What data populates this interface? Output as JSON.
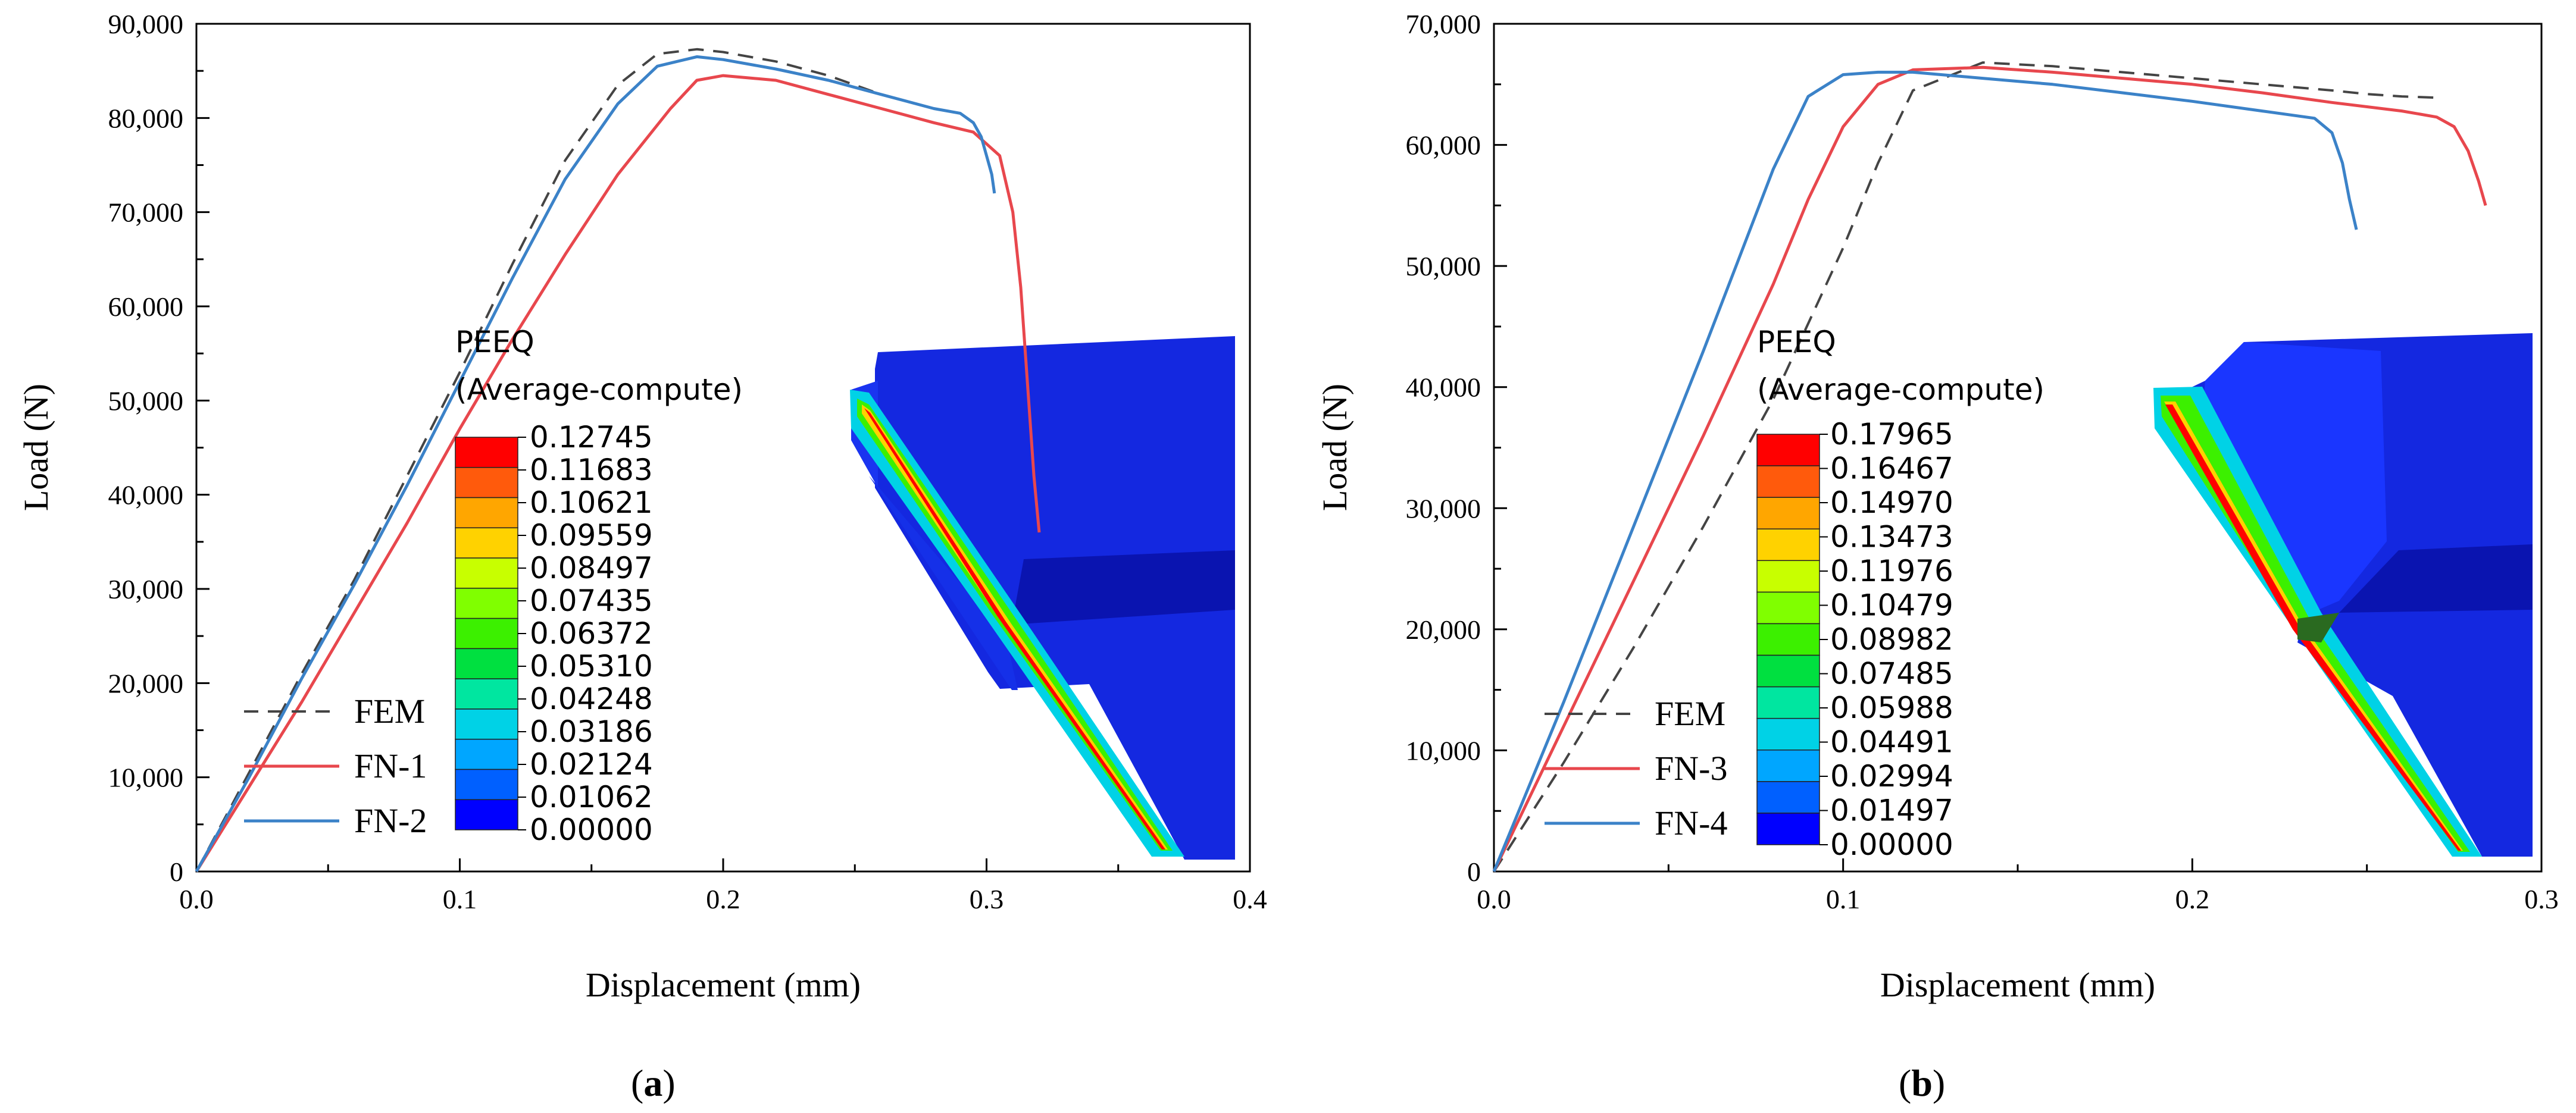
{
  "colors": {
    "fem": "#444444",
    "fn_red": "#e8474d",
    "fn_blue": "#3b82c8",
    "axis": "#000000",
    "mesh_dark": "#0a12b8",
    "mesh_base": "#1428e0",
    "mesh_light": "#2a44ff"
  },
  "chart_data": [
    {
      "id": "a",
      "type": "line",
      "panel_label": "a",
      "xlabel": "Displacement (mm)",
      "ylabel": "Load (N)",
      "xlim": [
        0,
        0.4
      ],
      "ylim": [
        0,
        90000
      ],
      "xticks": [
        0.0,
        0.1,
        0.2,
        0.3,
        0.4
      ],
      "xtick_labels": [
        "0.0",
        "0.1",
        "0.2",
        "0.3",
        "0.4"
      ],
      "yticks": [
        0,
        10000,
        20000,
        30000,
        40000,
        50000,
        60000,
        70000,
        80000,
        90000
      ],
      "ytick_labels": [
        "0",
        "10,000",
        "20,000",
        "30,000",
        "40,000",
        "50,000",
        "60,000",
        "70,000",
        "80,000",
        "90,000"
      ],
      "legend_position": "bottom-left",
      "series": [
        {
          "name": "FEM",
          "style": "dashed",
          "color": "#444444",
          "x": [
            0,
            0.02,
            0.04,
            0.06,
            0.08,
            0.1,
            0.12,
            0.14,
            0.16,
            0.175,
            0.19,
            0.2,
            0.22,
            0.24,
            0.26
          ],
          "y": [
            0,
            10500,
            21000,
            31000,
            42000,
            53000,
            64500,
            75500,
            83500,
            86800,
            87300,
            87000,
            86000,
            84500,
            82500
          ]
        },
        {
          "name": "FN-1",
          "style": "solid",
          "color": "#e8474d",
          "x": [
            0,
            0.02,
            0.04,
            0.06,
            0.08,
            0.1,
            0.12,
            0.14,
            0.16,
            0.18,
            0.19,
            0.2,
            0.22,
            0.24,
            0.26,
            0.28,
            0.295,
            0.305,
            0.31,
            0.313,
            0.316,
            0.318,
            0.32
          ],
          "y": [
            0,
            9000,
            18000,
            27500,
            37000,
            47000,
            56500,
            65500,
            74000,
            81000,
            84000,
            84500,
            84000,
            82500,
            81000,
            79500,
            78500,
            76000,
            70000,
            62000,
            50000,
            42000,
            36000
          ]
        },
        {
          "name": "FN-2",
          "style": "solid",
          "color": "#3b82c8",
          "x": [
            0,
            0.02,
            0.04,
            0.06,
            0.08,
            0.1,
            0.12,
            0.14,
            0.16,
            0.175,
            0.19,
            0.2,
            0.22,
            0.24,
            0.26,
            0.28,
            0.29,
            0.295,
            0.298,
            0.3,
            0.302,
            0.303
          ],
          "y": [
            0,
            10000,
            20500,
            30500,
            41000,
            52000,
            63000,
            73500,
            81500,
            85500,
            86500,
            86200,
            85200,
            84000,
            82500,
            81000,
            80500,
            79500,
            78000,
            76000,
            74000,
            72000
          ]
        }
      ],
      "colorbar": {
        "title_line1": "PEEQ",
        "title_line2": "(Average-compute)",
        "labels": [
          "0.12745",
          "0.11683",
          "0.10621",
          "0.09559",
          "0.08497",
          "0.07435",
          "0.06372",
          "0.05310",
          "0.04248",
          "0.03186",
          "0.02124",
          "0.01062",
          "0.00000"
        ],
        "band_colors": [
          "#ff0000",
          "#ff5a0c",
          "#ffa600",
          "#ffd200",
          "#c8ff00",
          "#80ff00",
          "#3cf000",
          "#00e040",
          "#00e6a0",
          "#00d2e6",
          "#00a6ff",
          "#0060ff",
          "#0000ff"
        ]
      }
    },
    {
      "id": "b",
      "type": "line",
      "panel_label": "b",
      "xlabel": "Displacement (mm)",
      "ylabel": "Load (N)",
      "xlim": [
        0,
        0.3
      ],
      "ylim": [
        0,
        70000
      ],
      "xticks": [
        0.0,
        0.1,
        0.2,
        0.3
      ],
      "xtick_labels": [
        "0.0",
        "0.1",
        "0.2",
        "0.3"
      ],
      "yticks": [
        0,
        10000,
        20000,
        30000,
        40000,
        50000,
        60000,
        70000
      ],
      "ytick_labels": [
        "0",
        "10,000",
        "20,000",
        "30,000",
        "40,000",
        "50,000",
        "60,000",
        "70,000"
      ],
      "legend_position": "bottom-left",
      "series": [
        {
          "name": "FEM",
          "style": "dashed",
          "color": "#444444",
          "x": [
            0,
            0.02,
            0.04,
            0.06,
            0.08,
            0.1,
            0.11,
            0.12,
            0.14,
            0.16,
            0.18,
            0.2,
            0.22,
            0.24,
            0.25,
            0.26,
            0.27
          ],
          "y": [
            0,
            9000,
            18500,
            28500,
            39000,
            51500,
            58500,
            64500,
            66800,
            66500,
            66000,
            65500,
            65000,
            64500,
            64200,
            64000,
            63900
          ]
        },
        {
          "name": "FN-3",
          "style": "solid",
          "color": "#e8474d",
          "x": [
            0,
            0.02,
            0.04,
            0.06,
            0.08,
            0.09,
            0.1,
            0.11,
            0.12,
            0.14,
            0.16,
            0.18,
            0.2,
            0.22,
            0.24,
            0.26,
            0.27,
            0.275,
            0.279,
            0.282,
            0.284
          ],
          "y": [
            0,
            12000,
            24000,
            36000,
            48500,
            55500,
            61500,
            65000,
            66200,
            66400,
            66000,
            65500,
            65000,
            64300,
            63500,
            62800,
            62300,
            61500,
            59500,
            57000,
            55000
          ]
        },
        {
          "name": "FN-4",
          "style": "solid",
          "color": "#3b82c8",
          "x": [
            0,
            0.02,
            0.04,
            0.06,
            0.07,
            0.08,
            0.09,
            0.1,
            0.11,
            0.12,
            0.14,
            0.16,
            0.18,
            0.2,
            0.22,
            0.235,
            0.24,
            0.243,
            0.245,
            0.247
          ],
          "y": [
            0,
            14000,
            28500,
            43000,
            50500,
            58000,
            64000,
            65800,
            66000,
            66000,
            65500,
            65000,
            64300,
            63600,
            62800,
            62200,
            61000,
            58500,
            55500,
            53000
          ]
        }
      ],
      "colorbar": {
        "title_line1": "PEEQ",
        "title_line2": "(Average-compute)",
        "labels": [
          "0.17965",
          "0.16467",
          "0.14970",
          "0.13473",
          "0.11976",
          "0.10479",
          "0.08982",
          "0.07485",
          "0.05988",
          "0.04491",
          "0.02994",
          "0.01497",
          "0.00000"
        ],
        "band_colors": [
          "#ff0000",
          "#ff5a0c",
          "#ffa600",
          "#ffd200",
          "#c8ff00",
          "#80ff00",
          "#3cf000",
          "#00e040",
          "#00e6a0",
          "#00d2e6",
          "#00a6ff",
          "#0060ff",
          "#0000ff"
        ]
      }
    }
  ]
}
